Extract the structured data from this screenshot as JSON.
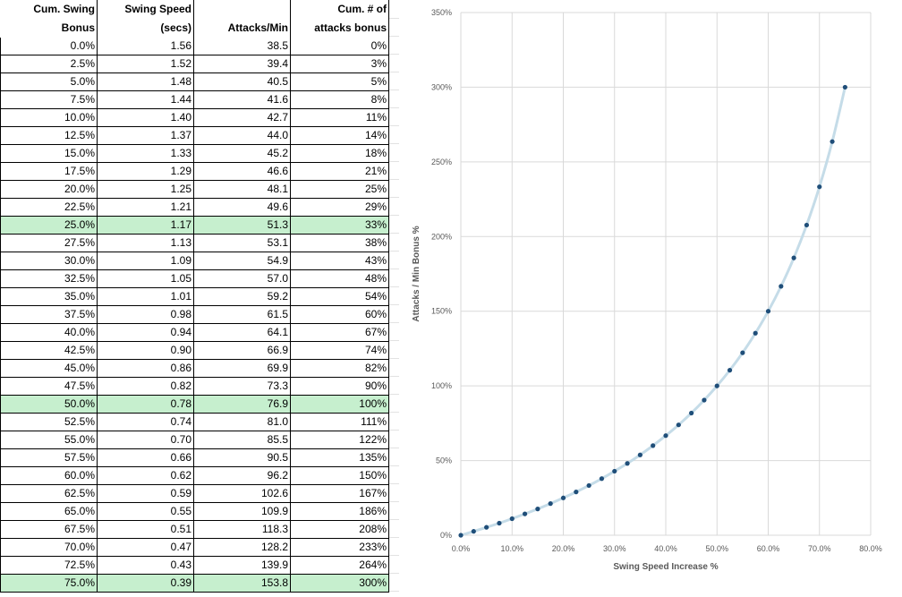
{
  "table": {
    "headers": [
      [
        "Cum. Swing",
        "Bonus"
      ],
      [
        "Swing Speed",
        "(secs)"
      ],
      [
        "",
        "Attacks/Min"
      ],
      [
        "Cum. # of",
        "attacks bonus"
      ]
    ],
    "highlight_color": "#c6efce",
    "highlighted_rows": [
      10,
      20,
      30
    ],
    "rows": [
      [
        "0.0%",
        "1.56",
        "38.5",
        "0%"
      ],
      [
        "2.5%",
        "1.52",
        "39.4",
        "3%"
      ],
      [
        "5.0%",
        "1.48",
        "40.5",
        "5%"
      ],
      [
        "7.5%",
        "1.44",
        "41.6",
        "8%"
      ],
      [
        "10.0%",
        "1.40",
        "42.7",
        "11%"
      ],
      [
        "12.5%",
        "1.37",
        "44.0",
        "14%"
      ],
      [
        "15.0%",
        "1.33",
        "45.2",
        "18%"
      ],
      [
        "17.5%",
        "1.29",
        "46.6",
        "21%"
      ],
      [
        "20.0%",
        "1.25",
        "48.1",
        "25%"
      ],
      [
        "22.5%",
        "1.21",
        "49.6",
        "29%"
      ],
      [
        "25.0%",
        "1.17",
        "51.3",
        "33%"
      ],
      [
        "27.5%",
        "1.13",
        "53.1",
        "38%"
      ],
      [
        "30.0%",
        "1.09",
        "54.9",
        "43%"
      ],
      [
        "32.5%",
        "1.05",
        "57.0",
        "48%"
      ],
      [
        "35.0%",
        "1.01",
        "59.2",
        "54%"
      ],
      [
        "37.5%",
        "0.98",
        "61.5",
        "60%"
      ],
      [
        "40.0%",
        "0.94",
        "64.1",
        "67%"
      ],
      [
        "42.5%",
        "0.90",
        "66.9",
        "74%"
      ],
      [
        "45.0%",
        "0.86",
        "69.9",
        "82%"
      ],
      [
        "47.5%",
        "0.82",
        "73.3",
        "90%"
      ],
      [
        "50.0%",
        "0.78",
        "76.9",
        "100%"
      ],
      [
        "52.5%",
        "0.74",
        "81.0",
        "111%"
      ],
      [
        "55.0%",
        "0.70",
        "85.5",
        "122%"
      ],
      [
        "57.5%",
        "0.66",
        "90.5",
        "135%"
      ],
      [
        "60.0%",
        "0.62",
        "96.2",
        "150%"
      ],
      [
        "62.5%",
        "0.59",
        "102.6",
        "167%"
      ],
      [
        "65.0%",
        "0.55",
        "109.9",
        "186%"
      ],
      [
        "67.5%",
        "0.51",
        "118.3",
        "208%"
      ],
      [
        "70.0%",
        "0.47",
        "128.2",
        "233%"
      ],
      [
        "72.5%",
        "0.43",
        "139.9",
        "264%"
      ],
      [
        "75.0%",
        "0.39",
        "153.8",
        "300%"
      ]
    ]
  },
  "chart_data": {
    "type": "scatter",
    "title": "",
    "xlabel": "Swing Speed Increase %",
    "ylabel": "Attacks / Min Bonus %",
    "xlim": [
      0,
      80
    ],
    "ylim": [
      0,
      350
    ],
    "x_ticks": [
      "0.0%",
      "10.0%",
      "20.0%",
      "30.0%",
      "40.0%",
      "50.0%",
      "60.0%",
      "70.0%",
      "80.0%"
    ],
    "y_ticks": [
      "0%",
      "50%",
      "100%",
      "150%",
      "200%",
      "250%",
      "300%",
      "350%"
    ],
    "grid": true,
    "smooth_line": true,
    "line_color": "#c5dce8",
    "marker_color": "#1f4e79",
    "x": [
      0,
      2.5,
      5,
      7.5,
      10,
      12.5,
      15,
      17.5,
      20,
      22.5,
      25,
      27.5,
      30,
      32.5,
      35,
      37.5,
      40,
      42.5,
      45,
      47.5,
      50,
      52.5,
      55,
      57.5,
      60,
      62.5,
      65,
      67.5,
      70,
      72.5,
      75
    ],
    "y": [
      0,
      2.6,
      5.3,
      8.1,
      11.1,
      14.3,
      17.6,
      21.2,
      25,
      29,
      33.3,
      37.9,
      42.9,
      48.1,
      53.8,
      60,
      66.7,
      73.9,
      81.8,
      90.5,
      100,
      110.5,
      122.2,
      135.3,
      150,
      166.7,
      185.7,
      207.7,
      233.3,
      263.6,
      300
    ]
  }
}
